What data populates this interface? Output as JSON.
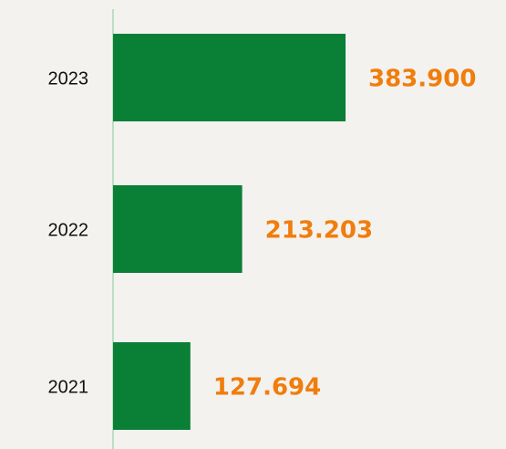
{
  "chart_data": {
    "type": "bar",
    "orientation": "horizontal",
    "categories": [
      "2023",
      "2022",
      "2021"
    ],
    "values": [
      383900,
      213203,
      127694
    ],
    "value_labels": [
      "383.900",
      "213.203",
      "127.694"
    ],
    "color": "#0a7f36",
    "label_color": "#f07d0c"
  }
}
